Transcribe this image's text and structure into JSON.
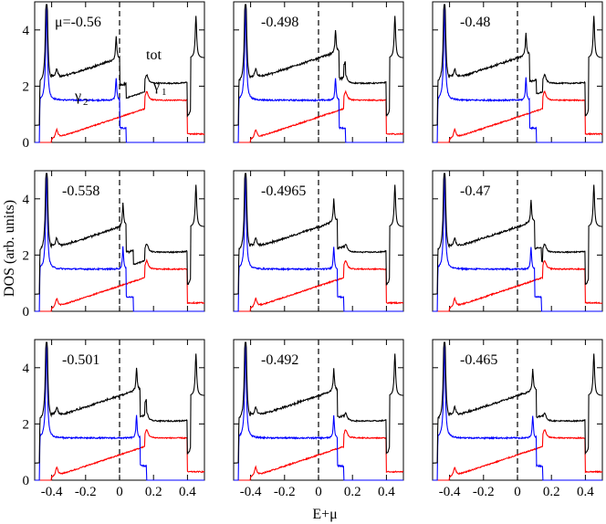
{
  "chart_data": {
    "type": "line",
    "layout": "3x3 grid of panels",
    "xlabel": "E+μ",
    "ylabel": "DOS (arb. units)",
    "xlim": [
      -0.5,
      0.5
    ],
    "ylim": [
      0,
      5
    ],
    "xticks": [
      -0.4,
      -0.2,
      0,
      0.2,
      0.4
    ],
    "xtick_labels": [
      "-0.4",
      "-0.2",
      "0",
      "0.2",
      "0.4"
    ],
    "yticks": [
      0,
      2,
      4
    ],
    "ytick_labels": [
      "0",
      "2",
      "4"
    ],
    "reference_line": {
      "x": 0,
      "style": "dashed"
    },
    "series_names": [
      "tot",
      "γ2",
      "γ1"
    ],
    "series_colors": {
      "tot": "#000000",
      "γ2": "#0000ff",
      "γ1": "#ff0000"
    },
    "series_annotations": {
      "tot": "tot",
      "gamma2": "γ",
      "gamma2_sub": "2",
      "gamma1": "γ",
      "gamma1_sub": "1"
    },
    "panels": [
      {
        "label": "μ=-0.56",
        "peak_e": -0.02
      },
      {
        "label": "-0.498",
        "peak_e": 0.1
      },
      {
        "label": "-0.48",
        "peak_e": 0.05
      },
      {
        "label": "-0.558",
        "peak_e": 0.02
      },
      {
        "label": "-0.4965",
        "peak_e": 0.09
      },
      {
        "label": "-0.47",
        "peak_e": 0.08
      },
      {
        "label": "-0.501",
        "peak_e": 0.1
      },
      {
        "label": "-0.492",
        "peak_e": 0.09
      },
      {
        "label": "-0.465",
        "peak_e": 0.09
      }
    ]
  }
}
